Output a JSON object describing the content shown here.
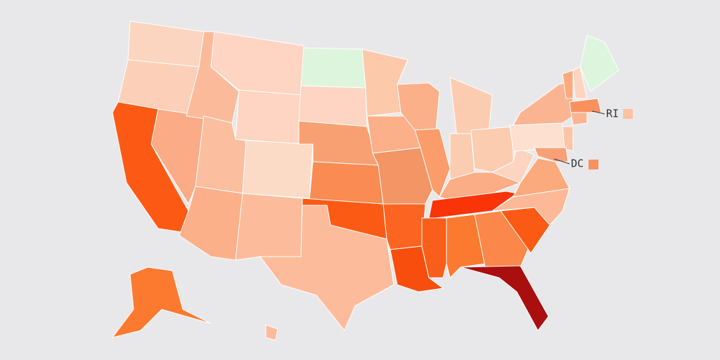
{
  "background": "#e8e8ea",
  "regions": [
    {
      "color": "#fcd5c0"
    },
    {
      "color": "#fcd0b8"
    },
    {
      "color": "#fc5a14"
    },
    {
      "color": "#fbab85"
    },
    {
      "color": "#fbbb9a"
    },
    {
      "color": "#fdd5c2"
    },
    {
      "color": "#fdd5c2"
    },
    {
      "color": "#fbbe9e"
    },
    {
      "color": "#fbdac6"
    },
    {
      "color": "#fbb08a"
    },
    {
      "color": "#fcbc9c"
    },
    {
      "color": "#ddf5dc"
    },
    {
      "color": "#fdd5c2"
    },
    {
      "color": "#f9a072"
    },
    {
      "color": "#f98b53"
    },
    {
      "color": "#fb5a14"
    },
    {
      "color": "#fcbc9c"
    },
    {
      "color": "#fcc9ab"
    },
    {
      "color": "#fbb08a"
    },
    {
      "color": "#f49565"
    },
    {
      "color": "#fb6521"
    },
    {
      "color": "#f74e0d"
    },
    {
      "color": "#fbb08a"
    },
    {
      "color": "#fa9d6a"
    },
    {
      "color": "#fcccb0"
    },
    {
      "color": "#fcccb0"
    },
    {
      "color": "#fcccb0"
    },
    {
      "color": "#fbad85"
    },
    {
      "color": "#f93408"
    },
    {
      "color": "#f95e1a"
    },
    {
      "color": "#fb7a30"
    },
    {
      "color": "#fb884a"
    },
    {
      "color": "#a90f0f"
    },
    {
      "color": "#fb5a14"
    },
    {
      "color": "#fdb897"
    },
    {
      "color": "#fbaa7d"
    },
    {
      "color": "#fdd4bf"
    },
    {
      "color": "#fde0d0"
    },
    {
      "color": "#fbb492"
    },
    {
      "color": "#fcc5a7"
    },
    {
      "color": "#f7a076"
    },
    {
      "color": "#fbaa7d"
    },
    {
      "color": "#fcd5c2"
    },
    {
      "color": "#ddf5dc"
    },
    {
      "color": "#f8915e"
    },
    {
      "color": "#fbb492"
    },
    {
      "color": "#fb7a30"
    },
    {
      "color": "#fcbc9c"
    }
  ],
  "labels": [
    {
      "text": "RI",
      "color": "#fcc2a2"
    },
    {
      "text": "DC",
      "color": "#f8915e"
    }
  ]
}
